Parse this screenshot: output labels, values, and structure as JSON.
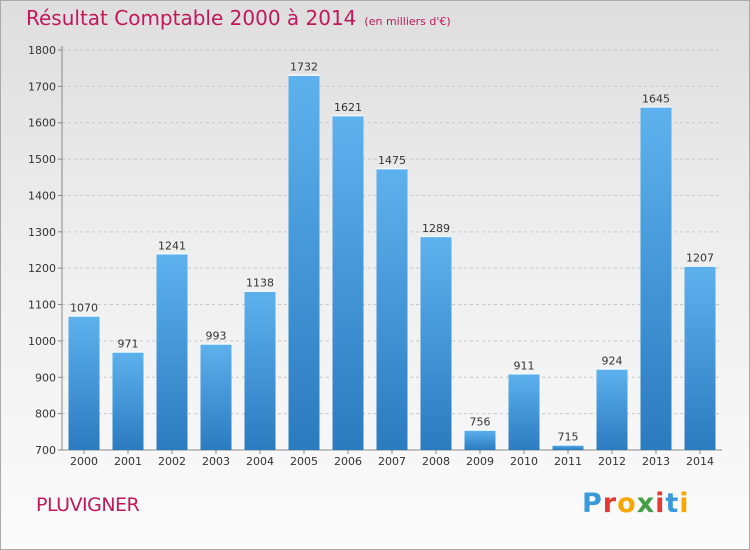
{
  "header": {
    "title": "Résultat Comptable 2000 à 2014",
    "subtitle": "(en milliers d'€)"
  },
  "footer": {
    "commune": "PLUVIGNER",
    "logo_text": "Proxiti"
  },
  "colors": {
    "title": "#c0185a",
    "bar_top": "#5db2ee",
    "bar_bottom": "#2b7bbf",
    "logo_letters": [
      "#3a9ad9",
      "#e53935",
      "#f6a800",
      "#43a047",
      "#e53935",
      "#3a9ad9",
      "#f6a800"
    ]
  },
  "chart_data": {
    "type": "bar",
    "title": "Résultat Comptable 2000 à 2014",
    "subtitle": "(en milliers d'€)",
    "categories": [
      "2000",
      "2001",
      "2002",
      "2003",
      "2004",
      "2005",
      "2006",
      "2007",
      "2008",
      "2009",
      "2010",
      "2011",
      "2012",
      "2013",
      "2014"
    ],
    "values": [
      1070,
      971,
      1241,
      993,
      1138,
      1732,
      1621,
      1475,
      1289,
      756,
      911,
      715,
      924,
      1645,
      1207
    ],
    "ylim": [
      700,
      1800
    ],
    "yticks": [
      700,
      800,
      900,
      1000,
      1100,
      1200,
      1300,
      1400,
      1500,
      1600,
      1700,
      1800
    ],
    "grid": true,
    "xlabel": "",
    "ylabel": ""
  }
}
